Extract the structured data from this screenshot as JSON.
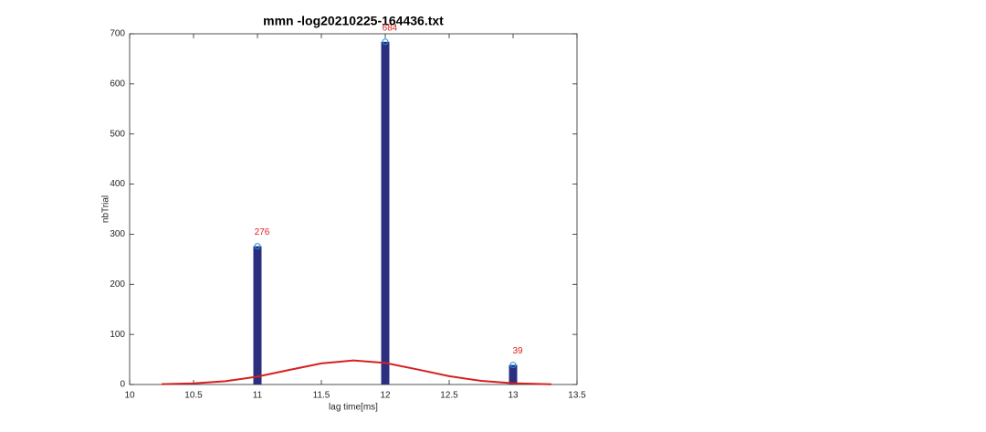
{
  "chart_data": {
    "type": "bar",
    "title": "mmn -log20210225-164436.txt",
    "x_label": "lag time[ms]",
    "y_label": "nbTrial",
    "x": [
      11,
      12,
      13
    ],
    "values": [
      276,
      684,
      39
    ],
    "color": "#2b2f80",
    "marker_color": "#1a8fd6",
    "curve": {
      "x": [
        10.25,
        10.5,
        10.75,
        11,
        11.25,
        11.5,
        11.75,
        12,
        12.25,
        12.5,
        12.75,
        13,
        13.3
      ],
      "values": [
        0.6,
        2.2,
        6.7,
        15.7,
        29.1,
        42.1,
        48.0,
        43.0,
        30.2,
        16.7,
        7.2,
        2.5,
        0.5
      ],
      "color": "#d62020"
    },
    "xlim": [
      10,
      13.5
    ],
    "xticks": [
      10,
      10.5,
      11,
      11.5,
      12,
      12.5,
      13,
      13.5
    ],
    "ylim": [
      0,
      700
    ],
    "yticks": [
      0,
      100,
      200,
      300,
      400,
      500,
      600,
      700
    ],
    "grid": false
  }
}
